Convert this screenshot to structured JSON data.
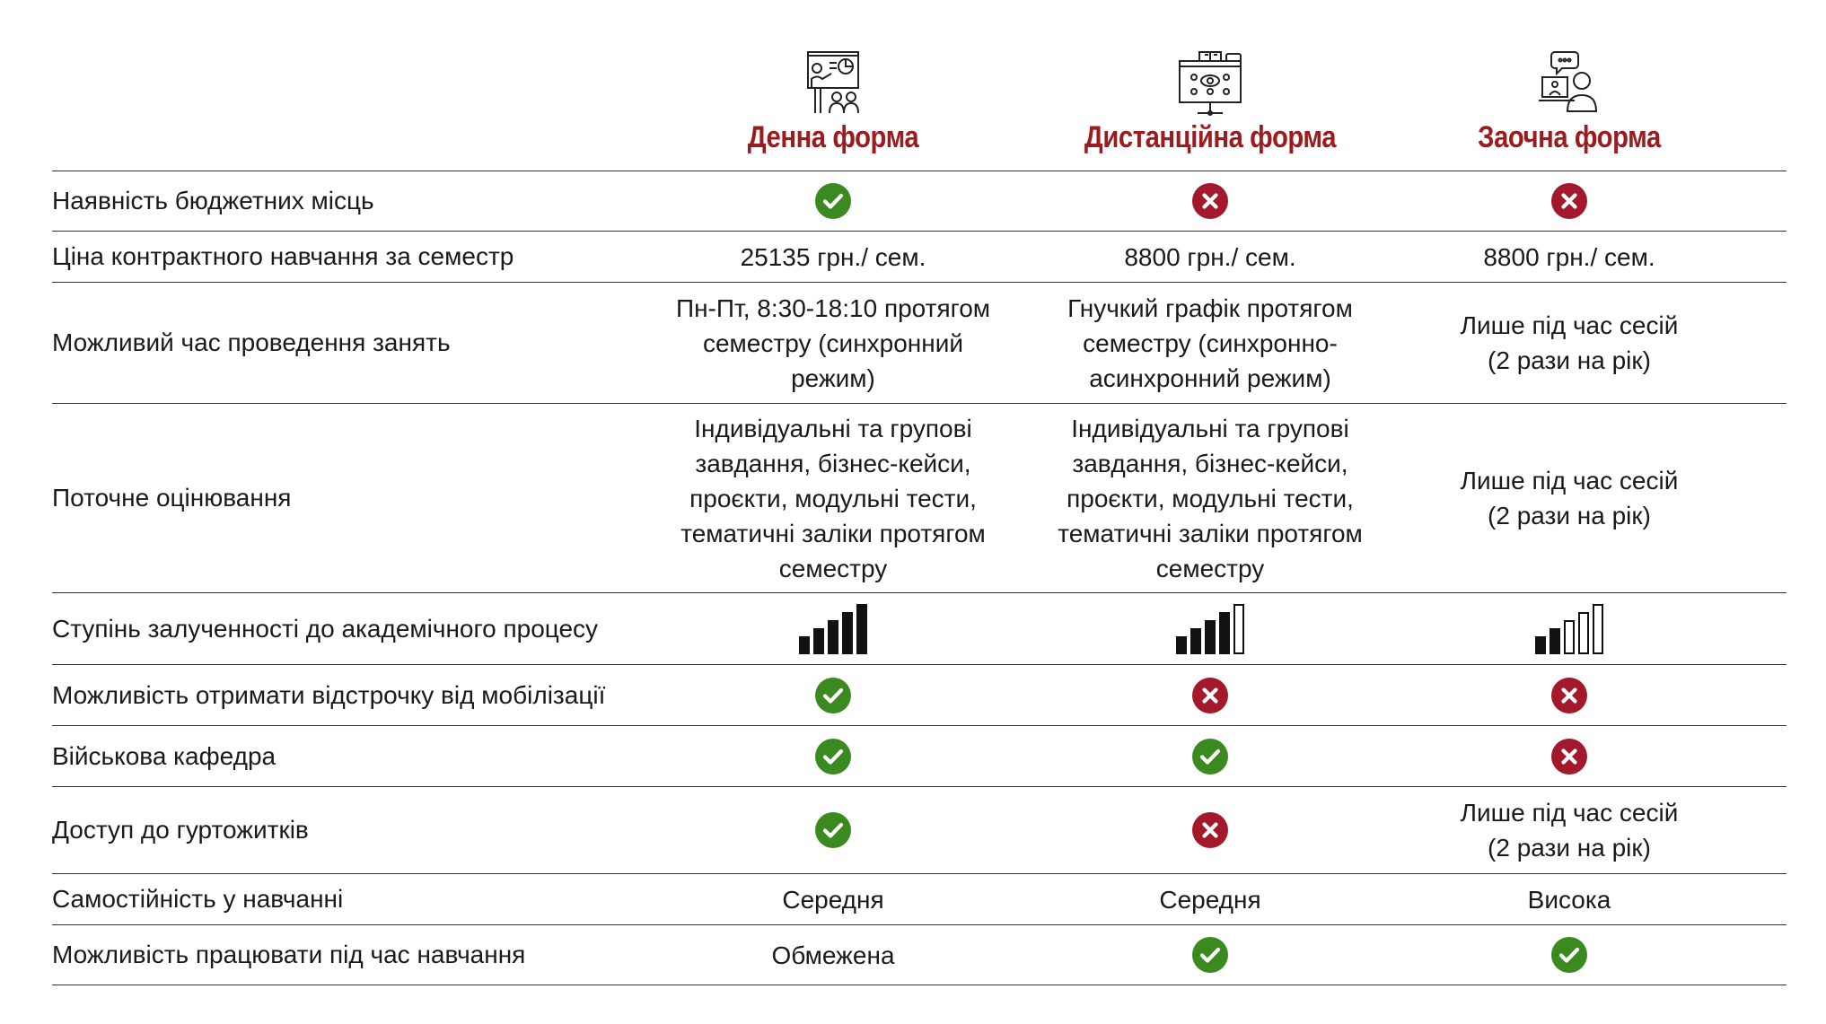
{
  "columns": [
    {
      "title": "Денна форма",
      "icon": "teacher-presentation-icon"
    },
    {
      "title": "Дистанційна форма",
      "icon": "online-learning-icon"
    },
    {
      "title": "Заочна форма",
      "icon": "self-study-icon"
    }
  ],
  "colors": {
    "accent": "#9c1b1f",
    "yes": "#3a8a1f",
    "no": "#a3182a"
  },
  "rows": [
    {
      "label": "Наявність бюджетних місць",
      "cells": [
        {
          "type": "yes"
        },
        {
          "type": "no"
        },
        {
          "type": "no"
        }
      ]
    },
    {
      "label": "Ціна контрактного навчання за семестр",
      "cells": [
        {
          "type": "text",
          "value": "25135 грн./ сем."
        },
        {
          "type": "text",
          "value": "8800 грн./ сем."
        },
        {
          "type": "text",
          "value": "8800 грн./ сем."
        }
      ]
    },
    {
      "label": "Можливий час проведення занять",
      "cells": [
        {
          "type": "text",
          "value": "Пн-Пт, 8:30-18:10 протягом\nсеместру (синхронний режим)"
        },
        {
          "type": "text",
          "value": "Гнучкий графік протягом\nсеместру (синхронно-\nасинхронний режим)"
        },
        {
          "type": "text",
          "value": "Лише під час сесій\n(2 рази на рік)"
        }
      ]
    },
    {
      "label": "Поточне оцінювання",
      "cells": [
        {
          "type": "text",
          "value": "Індивідуальні та групові\nзавдання, бізнес-кейси,\nпроєкти, модульні тести,\nтематичні заліки протягом\nсеместру"
        },
        {
          "type": "text",
          "value": "Індивідуальні та групові\nзавдання, бізнес-кейси,\nпроєкти, модульні тести,\nтематичні заліки протягом\nсеместру"
        },
        {
          "type": "text",
          "value": "Лише під час сесій\n(2 рази на рік)"
        }
      ]
    },
    {
      "label": "Ступінь залученності до академічного процесу",
      "cells": [
        {
          "type": "level",
          "value": 5,
          "max": 5
        },
        {
          "type": "level",
          "value": 4,
          "max": 5
        },
        {
          "type": "level",
          "value": 2,
          "max": 5
        }
      ]
    },
    {
      "label": "Можливість отримати відстрочку від мобілізації",
      "cells": [
        {
          "type": "yes"
        },
        {
          "type": "no"
        },
        {
          "type": "no"
        }
      ]
    },
    {
      "label": "Військова кафедра",
      "cells": [
        {
          "type": "yes"
        },
        {
          "type": "yes"
        },
        {
          "type": "no"
        }
      ]
    },
    {
      "label": "Доступ до гуртожитків",
      "cells": [
        {
          "type": "yes"
        },
        {
          "type": "no"
        },
        {
          "type": "text",
          "value": "Лише під час сесій\n(2 рази на рік)"
        }
      ]
    },
    {
      "label": "Самостійність у навчанні",
      "cells": [
        {
          "type": "text",
          "value": "Середня"
        },
        {
          "type": "text",
          "value": "Середня"
        },
        {
          "type": "text",
          "value": "Висока"
        }
      ]
    },
    {
      "label": "Можливість працювати під час навчання",
      "cells": [
        {
          "type": "text",
          "value": "Обмежена"
        },
        {
          "type": "yes"
        },
        {
          "type": "yes"
        }
      ]
    }
  ]
}
